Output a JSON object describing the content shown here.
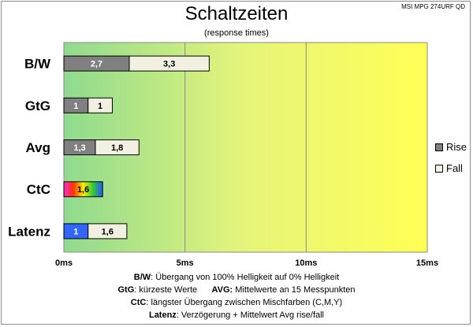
{
  "header": {
    "title": "Schaltzeiten",
    "subtitle": "(response times)",
    "monitor": "MSI MPG 274URF QD"
  },
  "legend": {
    "items": [
      {
        "label": "Rise",
        "color": "#808080"
      },
      {
        "label": "Fall",
        "color": "#f1f0e1"
      }
    ]
  },
  "notes": {
    "line1": {
      "key": "B/W",
      "text": ":  Übergang von 100% Helligkeit auf 0% Helligkeit"
    },
    "line2": {
      "key": "GtG",
      "text": ": kürzeste  Werte",
      "key2": "AVG:",
      "text2": " Mittelwerte  an 15 Messpunkten"
    },
    "line3": {
      "key": "CtC",
      "text": ": längster Übergang zwischen Mischfarben (C,M,Y)"
    },
    "line4": {
      "key": "Latenz",
      "text": ": Verzögerung  + Mittelwert Avg rise/fall"
    }
  },
  "chart_data": {
    "type": "bar",
    "orientation": "horizontal",
    "stacked": true,
    "title": "Schaltzeiten",
    "subtitle": "(response times)",
    "categories": [
      "B/W",
      "GtG",
      "Avg",
      "CtC",
      "Latenz"
    ],
    "series": [
      {
        "name": "Rise",
        "values": [
          2.7,
          1.0,
          1.3,
          1.6,
          1.0
        ],
        "labels": [
          "2,7",
          "1",
          "1,3",
          "1,6",
          "1"
        ],
        "color": "#808080"
      },
      {
        "name": "Fall",
        "values": [
          3.3,
          1.0,
          1.8,
          null,
          1.6
        ],
        "labels": [
          "3,3",
          "1",
          "1,8",
          "",
          "1,6"
        ],
        "color": "#f1f0e1"
      }
    ],
    "special_colors": {
      "CtC": "rainbow",
      "Latenz": "#3366ff"
    },
    "xlim": [
      0,
      15
    ],
    "xticks": [
      0,
      5,
      10,
      15
    ],
    "xtick_labels": [
      "0ms",
      "5ms",
      "10ms",
      "15ms"
    ],
    "grid": true,
    "background": "gradient green (#8fda8f) to yellow (#ffff55)",
    "legend": "right"
  }
}
